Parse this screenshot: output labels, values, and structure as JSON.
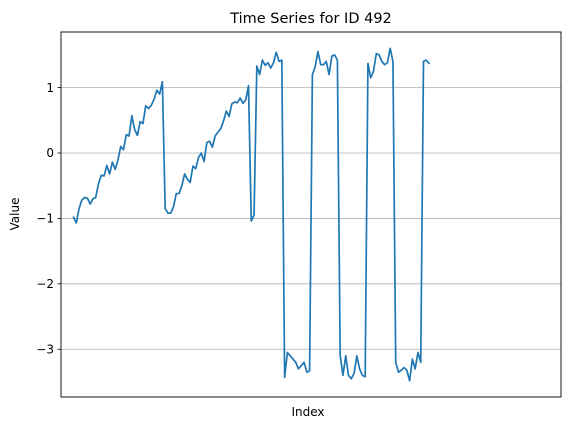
{
  "chart_data": {
    "type": "line",
    "title": "Time Series for ID 492",
    "xlabel": "Index",
    "ylabel": "Value",
    "ylim": [
      -3.73,
      1.85
    ],
    "xlim": [
      -4.5,
      175.5
    ],
    "grid": "y-only",
    "x_ticks_visible": false,
    "y_ticks": [
      1,
      0,
      -1,
      -2,
      -3
    ],
    "y_tick_labels": [
      "1",
      "0",
      "−1",
      "−2",
      "−3"
    ],
    "series": [
      {
        "color": "#1f77b4",
        "x_start": 0,
        "values": [
          -0.98,
          -1.07,
          -0.85,
          -0.72,
          -0.68,
          -0.69,
          -0.78,
          -0.7,
          -0.68,
          -0.47,
          -0.34,
          -0.35,
          -0.19,
          -0.32,
          -0.14,
          -0.25,
          -0.11,
          0.1,
          0.05,
          0.28,
          0.26,
          0.57,
          0.36,
          0.27,
          0.48,
          0.45,
          0.72,
          0.68,
          0.73,
          0.82,
          0.96,
          0.9,
          1.09,
          -0.85,
          -0.92,
          -0.92,
          -0.82,
          -0.62,
          -0.62,
          -0.5,
          -0.32,
          -0.4,
          -0.45,
          -0.2,
          -0.24,
          -0.07,
          0.0,
          -0.13,
          0.16,
          0.18,
          0.09,
          0.26,
          0.32,
          0.37,
          0.49,
          0.64,
          0.56,
          0.75,
          0.78,
          0.77,
          0.84,
          0.76,
          0.81,
          1.03,
          -1.04,
          -0.95,
          1.33,
          1.2,
          1.42,
          1.34,
          1.38,
          1.3,
          1.38,
          1.54,
          1.4,
          1.42,
          -3.43,
          -3.05,
          -3.1,
          -3.15,
          -3.2,
          -3.3,
          -3.25,
          -3.2,
          -3.35,
          -3.33,
          1.2,
          1.32,
          1.55,
          1.35,
          1.35,
          1.4,
          1.2,
          1.48,
          1.5,
          1.42,
          -3.1,
          -3.4,
          -3.1,
          -3.4,
          -3.45,
          -3.37,
          -3.1,
          -3.3,
          -3.4,
          -3.42,
          1.37,
          1.15,
          1.25,
          1.52,
          1.5,
          1.4,
          1.35,
          1.38,
          1.6,
          1.4,
          -3.2,
          -3.35,
          -3.32,
          -3.28,
          -3.32,
          -3.48,
          -3.15,
          -3.3,
          -3.05,
          -3.2,
          1.4,
          1.42,
          1.37
        ]
      }
    ]
  }
}
